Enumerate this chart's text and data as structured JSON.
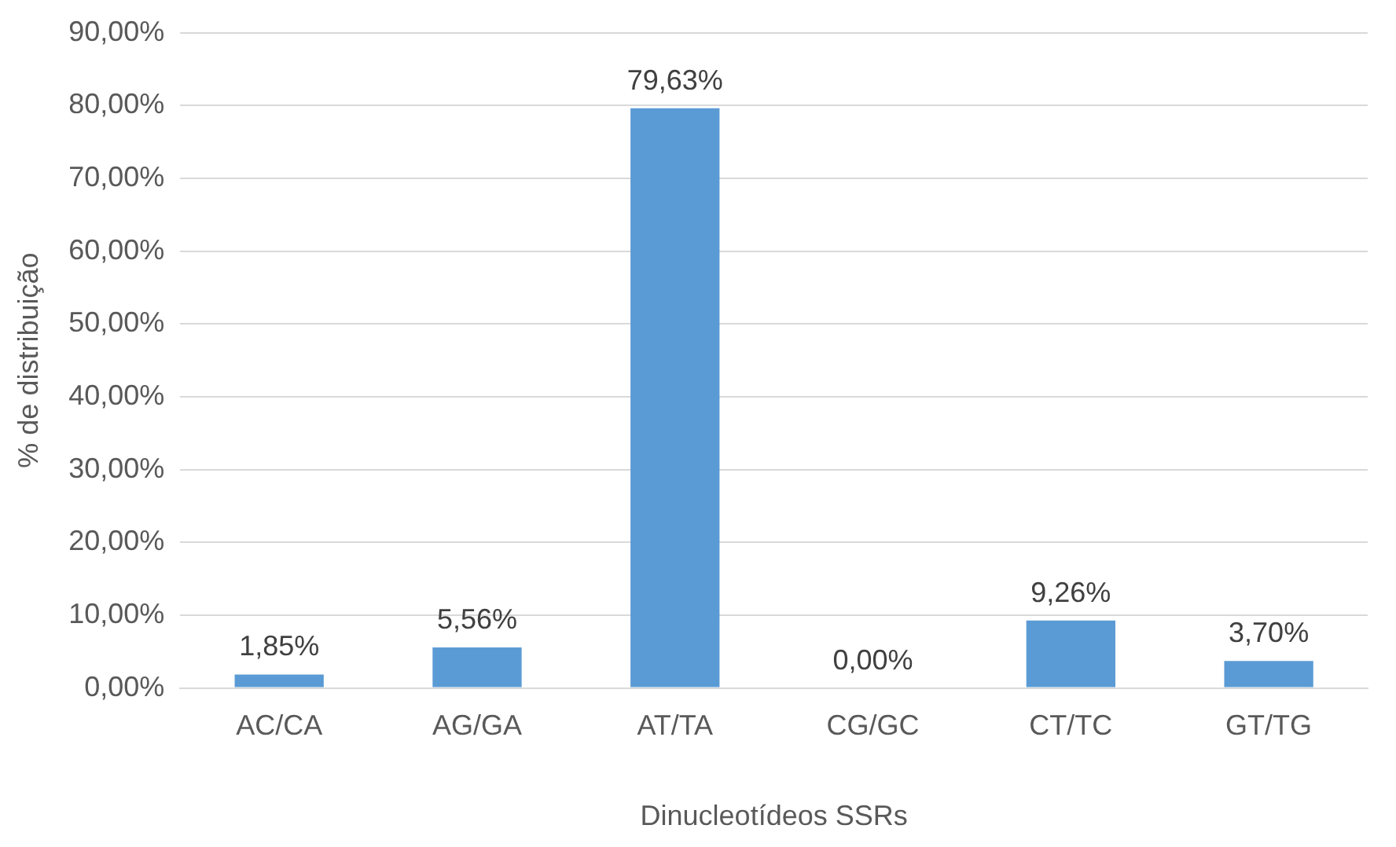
{
  "chart_data": {
    "type": "bar",
    "xlabel": "Dinucleotídeos SSRs",
    "ylabel": "% de distribuição",
    "categories": [
      "AC/CA",
      "AG/GA",
      "AT/TA",
      "CG/GC",
      "CT/TC",
      "GT/TG"
    ],
    "values": [
      1.85,
      5.56,
      79.63,
      0,
      9.26,
      3.7
    ],
    "value_labels": [
      "1,85%",
      "5,56%",
      "79,63%",
      "0,00%",
      "9,26%",
      "3,70%"
    ],
    "color": "#5b9bd5",
    "ylim": [
      0,
      90
    ],
    "yticks": [
      {
        "value": 0,
        "label": "0,00%"
      },
      {
        "value": 10,
        "label": "10,00%"
      },
      {
        "value": 20,
        "label": "20,00%"
      },
      {
        "value": 30,
        "label": "30,00%"
      },
      {
        "value": 40,
        "label": "40,00%"
      },
      {
        "value": 50,
        "label": "50,00%"
      },
      {
        "value": 60,
        "label": "60,00%"
      },
      {
        "value": 70,
        "label": "70,00%"
      },
      {
        "value": 80,
        "label": "80,00%"
      },
      {
        "value": 90,
        "label": "90,00%"
      }
    ],
    "grid": "y",
    "legend": false
  }
}
